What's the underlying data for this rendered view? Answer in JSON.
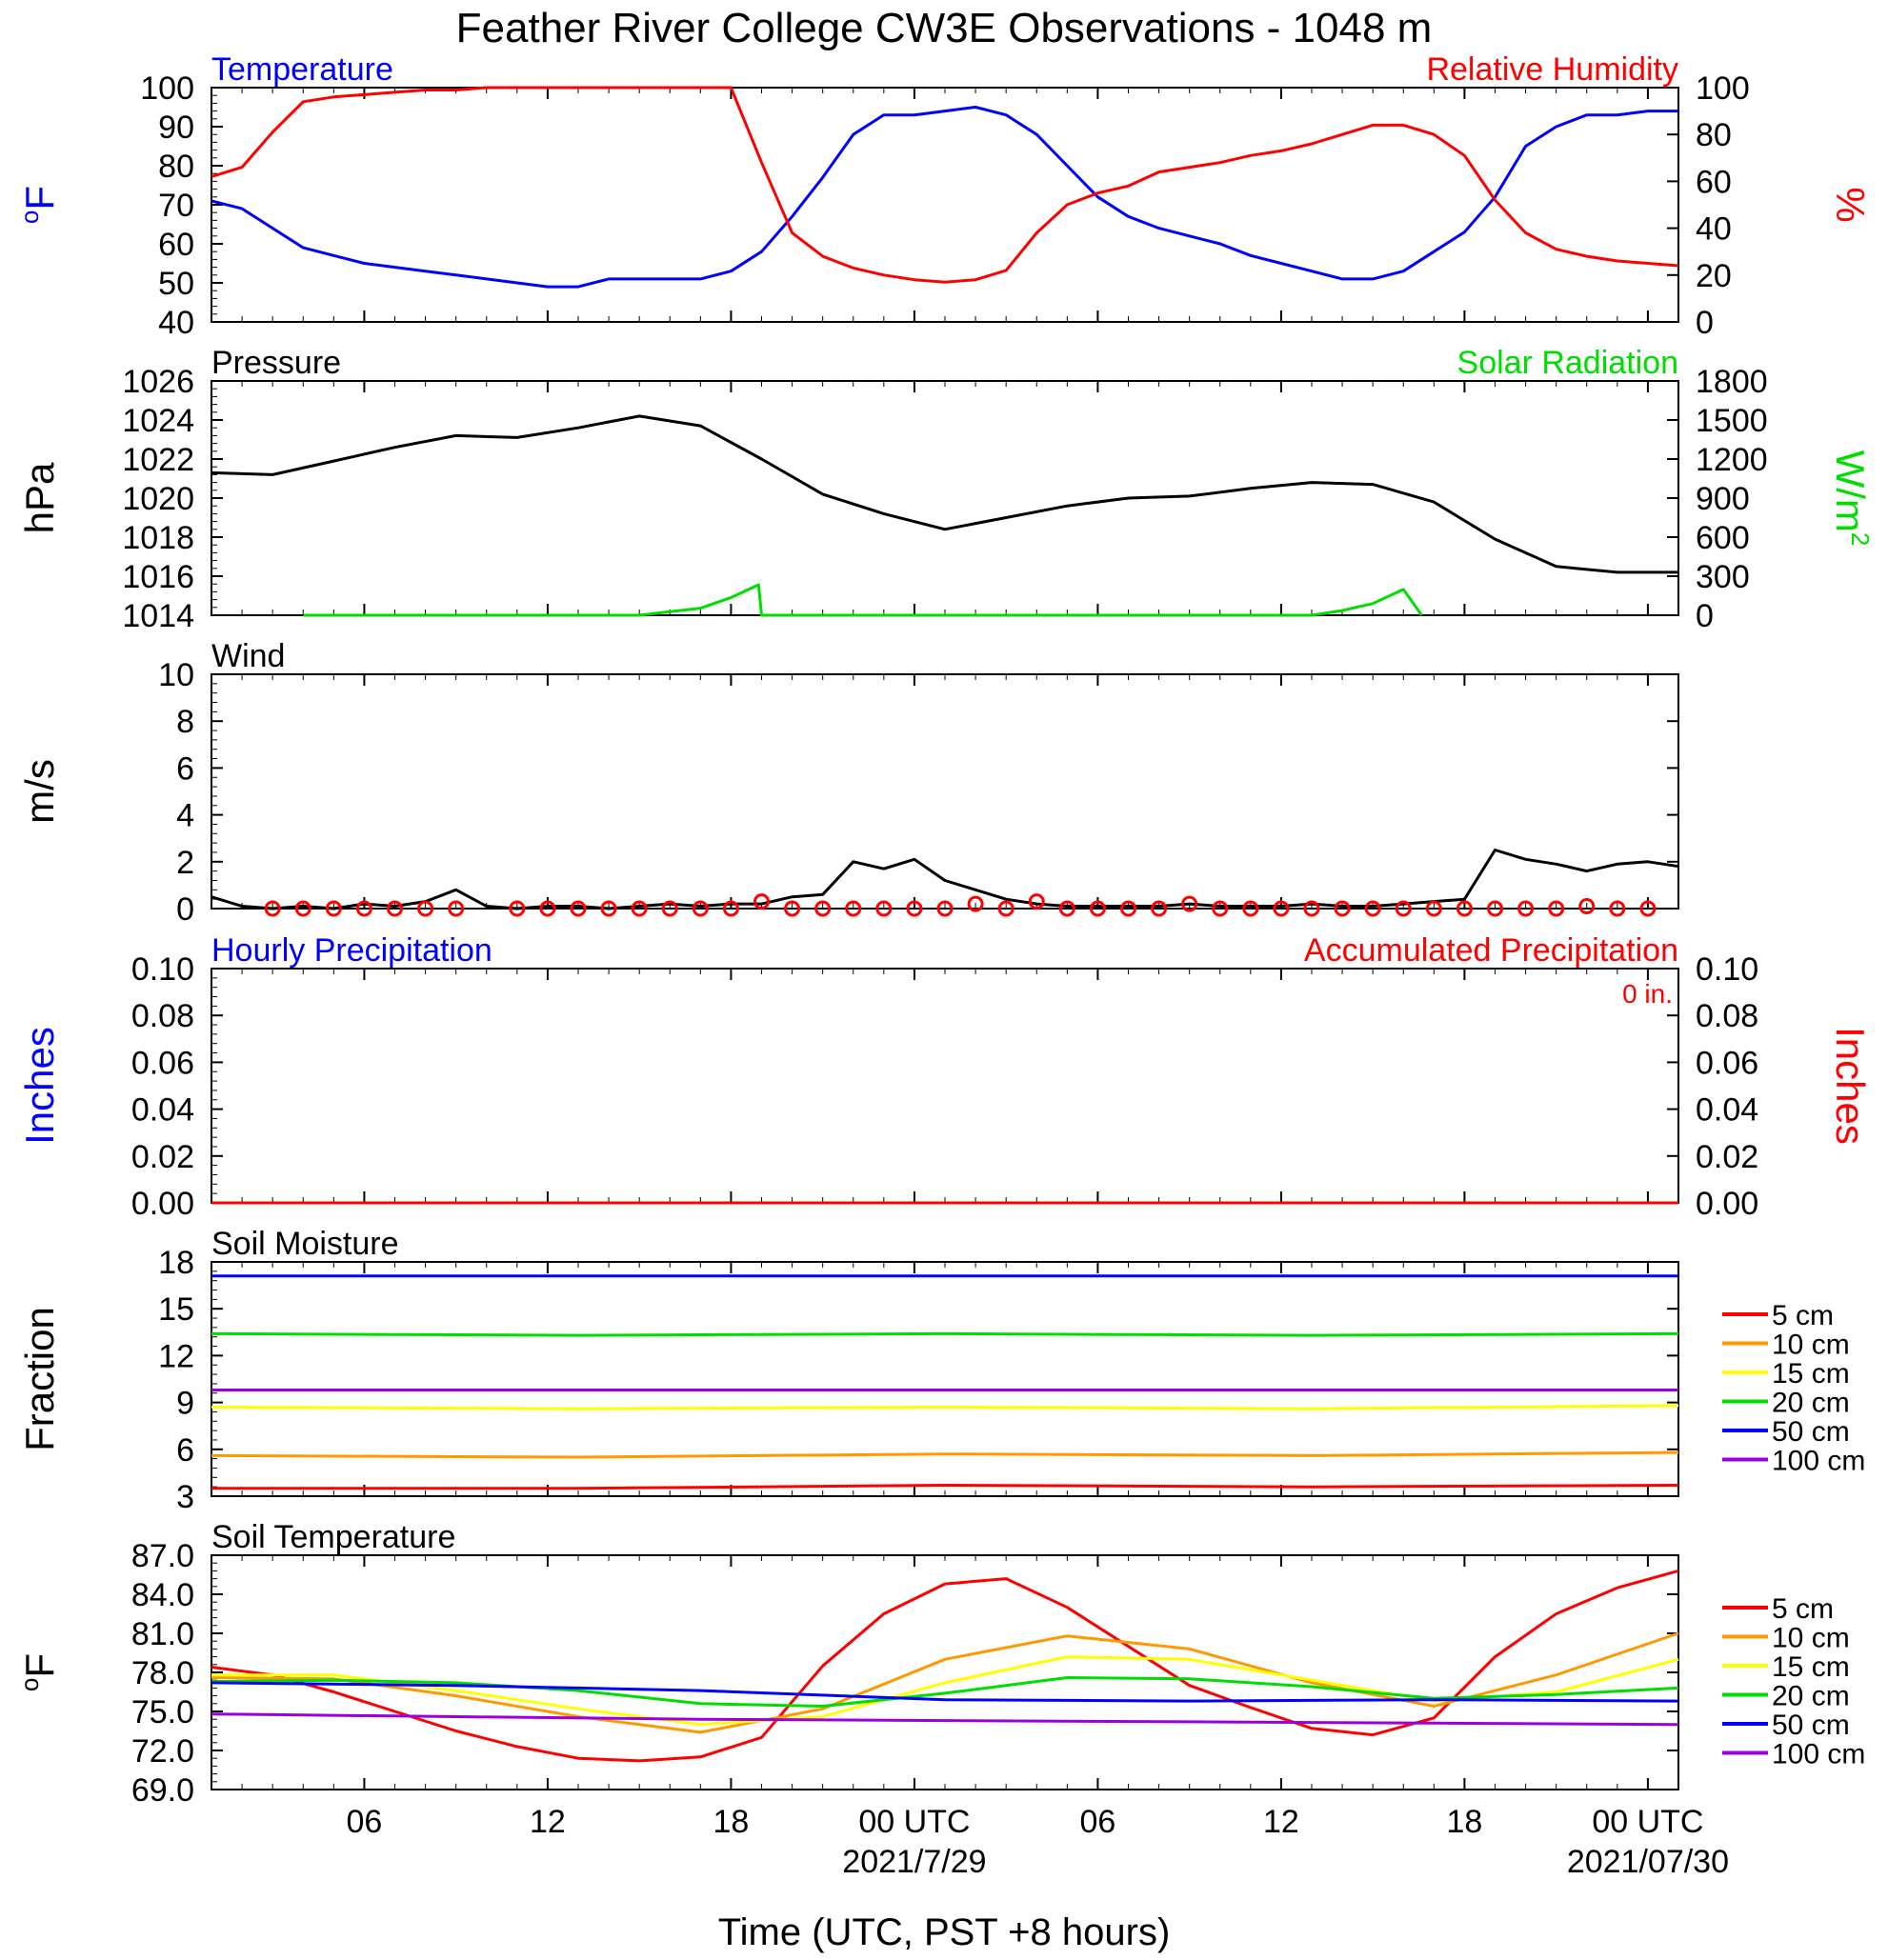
{
  "title": "Feather River College CW3E Observations - 1048 m",
  "xlabel": "Time (UTC, PST +8 hours)",
  "x_ticks": [
    "06",
    "12",
    "18",
    "00 UTC",
    "06",
    "12",
    "18",
    "00 UTC"
  ],
  "date_labels": [
    "2021/7/29",
    "2021/07/30"
  ],
  "colors": {
    "blue": "#0000ff",
    "red": "#ff0000",
    "green": "#00dd00",
    "black": "#000000",
    "orange": "#ff9900",
    "yellow": "#ffff00",
    "purple": "#9900dd"
  },
  "panels": {
    "temp_rh": {
      "left_title": "Temperature",
      "right_title": "Relative Humidity",
      "ylabel_left": "oF",
      "ylabel_right": "%",
      "yticks_left": [
        "40",
        "50",
        "60",
        "70",
        "80",
        "90",
        "100"
      ],
      "yticks_right": [
        "0",
        "20",
        "40",
        "60",
        "80",
        "100"
      ]
    },
    "pressure": {
      "left_title": "Pressure",
      "right_title": "Solar Radiation",
      "ylabel_left": "hPa",
      "ylabel_right": "W/m2",
      "yticks_left": [
        "1014",
        "1016",
        "1018",
        "1020",
        "1022",
        "1024",
        "1026"
      ],
      "yticks_right": [
        "0",
        "300",
        "600",
        "900",
        "1200",
        "1500",
        "1800"
      ]
    },
    "wind": {
      "left_title": "Wind",
      "ylabel_left": "m/s",
      "yticks_left": [
        "0",
        "2",
        "4",
        "6",
        "8",
        "10"
      ]
    },
    "precip": {
      "left_title": "Hourly Precipitation",
      "right_title": "Accumulated Precipitation",
      "accum_label": "0 in.",
      "ylabel_left": "Inches",
      "ylabel_right": "Inches",
      "yticks_left": [
        "0.00",
        "0.02",
        "0.04",
        "0.06",
        "0.08",
        "0.10"
      ],
      "yticks_right": [
        "0.00",
        "0.02",
        "0.04",
        "0.06",
        "0.08",
        "0.10"
      ]
    },
    "soil_moisture": {
      "left_title": "Soil Moisture",
      "ylabel_left": "Fraction",
      "yticks_left": [
        "3",
        "6",
        "9",
        "12",
        "15",
        "18"
      ],
      "legend": [
        "5 cm",
        "10 cm",
        "15 cm",
        "20 cm",
        "50 cm",
        "100 cm"
      ]
    },
    "soil_temp": {
      "left_title": "Soil Temperature",
      "ylabel_left": "oF",
      "yticks_left": [
        "69.0",
        "72.0",
        "75.0",
        "78.0",
        "81.0",
        "84.0",
        "87.0"
      ],
      "legend": [
        "5 cm",
        "10 cm",
        "15 cm",
        "20 cm",
        "50 cm",
        "100 cm"
      ]
    }
  },
  "chart_data": [
    {
      "type": "line",
      "title": "Temperature / Relative Humidity",
      "x_unit": "hours since 2021-07-28 01 UTC",
      "ylim_left": [
        40,
        100
      ],
      "ylim_right": [
        0,
        100
      ],
      "series": [
        {
          "name": "Temperature",
          "axis": "left",
          "color": "blue",
          "x": [
            0,
            1,
            2,
            3,
            4,
            5,
            6,
            7,
            8,
            9,
            10,
            11,
            12,
            13,
            14,
            15,
            16,
            17,
            18,
            19,
            20,
            21,
            22,
            23,
            24,
            25,
            26,
            27,
            28,
            29,
            30,
            31,
            32,
            33,
            34,
            35,
            36,
            37,
            38,
            39,
            40,
            41,
            42,
            43,
            44,
            45,
            46,
            47,
            48
          ],
          "y": [
            71,
            69,
            64,
            59,
            57,
            55,
            54,
            53,
            52,
            51,
            50,
            49,
            49,
            51,
            51,
            51,
            51,
            53,
            58,
            67,
            77,
            88,
            93,
            93,
            94,
            95,
            93,
            88,
            80,
            72,
            67,
            64,
            62,
            60,
            57,
            55,
            53,
            51,
            51,
            53,
            58,
            63,
            72,
            85,
            90,
            93,
            93,
            94,
            94
          ]
        },
        {
          "name": "Relative Humidity",
          "axis": "right",
          "color": "red",
          "x": [
            0,
            1,
            2,
            3,
            4,
            5,
            6,
            7,
            8,
            9,
            10,
            11,
            12,
            13,
            14,
            15,
            16,
            17,
            18,
            19,
            20,
            21,
            22,
            23,
            24,
            25,
            26,
            27,
            28,
            29,
            30,
            31,
            32,
            33,
            34,
            35,
            36,
            37,
            38,
            39,
            40,
            41,
            42,
            43,
            44,
            45,
            46,
            47,
            48
          ],
          "y": [
            62,
            66,
            81,
            94,
            96,
            97,
            98,
            99,
            99,
            100,
            100,
            100,
            100,
            100,
            100,
            100,
            100,
            100,
            68,
            38,
            28,
            23,
            20,
            18,
            17,
            18,
            22,
            38,
            50,
            55,
            58,
            64,
            66,
            68,
            71,
            73,
            76,
            80,
            84,
            84,
            80,
            71,
            52,
            38,
            31,
            28,
            26,
            25,
            24
          ]
        }
      ]
    },
    {
      "type": "line",
      "title": "Pressure / Solar Radiation",
      "x_unit": "hours since 2021-07-28 01 UTC",
      "ylim_left": [
        1014,
        1026
      ],
      "ylim_right": [
        0,
        2000
      ],
      "series": [
        {
          "name": "Pressure",
          "axis": "left",
          "color": "black",
          "x": [
            0,
            2,
            4,
            6,
            8,
            10,
            12,
            14,
            16,
            18,
            20,
            22,
            24,
            26,
            28,
            30,
            32,
            34,
            36,
            38,
            40,
            42,
            44,
            46,
            48
          ],
          "y": [
            1021.3,
            1021.2,
            1021.9,
            1022.6,
            1023.2,
            1023.1,
            1023.6,
            1024.2,
            1023.7,
            1022.0,
            1020.2,
            1019.2,
            1018.4,
            1019.0,
            1019.6,
            1020.0,
            1020.1,
            1020.5,
            1020.8,
            1020.7,
            1019.8,
            1017.9,
            1016.5,
            1016.2,
            1016.2
          ]
        },
        {
          "name": "Solar Radiation",
          "axis": "right",
          "color": "green",
          "x": [
            3,
            10,
            14,
            15,
            16,
            17,
            17.9,
            18,
            29.2,
            36,
            37,
            38,
            39,
            39.6
          ],
          "y": [
            0,
            0,
            0,
            30,
            60,
            150,
            260,
            0,
            0,
            0,
            40,
            100,
            220,
            0
          ]
        }
      ]
    },
    {
      "type": "line",
      "title": "Wind",
      "x_unit": "hours since 2021-07-28 01 UTC",
      "ylim": [
        0,
        10
      ],
      "series": [
        {
          "name": "Wind speed",
          "color": "black",
          "x": [
            0,
            1,
            2,
            3,
            4,
            5,
            6,
            7,
            8,
            9,
            10,
            11,
            12,
            13,
            14,
            15,
            16,
            17,
            18,
            19,
            20,
            21,
            22,
            23,
            24,
            25,
            26,
            27,
            28,
            29,
            30,
            31,
            32,
            33,
            34,
            35,
            36,
            37,
            38,
            39,
            40,
            41,
            42,
            43,
            44,
            45,
            46,
            47,
            48
          ],
          "y": [
            0.5,
            0.1,
            0.0,
            0.1,
            0.0,
            0.2,
            0.1,
            0.3,
            0.8,
            0.1,
            0.0,
            0.1,
            0.1,
            0.0,
            0.1,
            0.2,
            0.1,
            0.2,
            0.2,
            0.5,
            0.6,
            2.0,
            1.7,
            2.1,
            1.2,
            0.8,
            0.4,
            0.2,
            0.1,
            0.1,
            0.1,
            0.1,
            0.2,
            0.1,
            0.1,
            0.1,
            0.2,
            0.1,
            0.1,
            0.2,
            0.3,
            0.4,
            2.5,
            2.1,
            1.9,
            1.6,
            1.9,
            2.0,
            1.8
          ]
        }
      ],
      "barb_points": {
        "x": [
          2,
          3,
          4,
          5,
          6,
          7,
          8,
          10,
          11,
          12,
          13,
          14,
          15,
          16,
          17,
          18,
          19,
          20,
          21,
          22,
          23,
          24,
          25,
          26,
          27,
          28,
          29,
          30,
          31,
          32,
          33,
          34,
          35,
          36,
          37,
          38,
          39,
          40,
          41,
          42,
          43,
          44,
          45,
          46,
          47
        ],
        "y": [
          0,
          0,
          0,
          0,
          0,
          0,
          0,
          0,
          0,
          0,
          0,
          0,
          0,
          0,
          0,
          0.3,
          0,
          0,
          0,
          0,
          0,
          0,
          0.2,
          0,
          0.3,
          0,
          0,
          0,
          0,
          0.2,
          0,
          0,
          0,
          0,
          0,
          0,
          0,
          0,
          0,
          0,
          0,
          0,
          0.1,
          0,
          0
        ]
      }
    },
    {
      "type": "line",
      "title": "Hourly / Accumulated Precipitation",
      "x_unit": "hours since 2021-07-28 01 UTC",
      "ylim": [
        0,
        0.1
      ],
      "series": [
        {
          "name": "Hourly Precipitation",
          "color": "blue",
          "x": [
            0,
            48
          ],
          "y": [
            0,
            0
          ]
        },
        {
          "name": "Accumulated Precipitation",
          "color": "red",
          "x": [
            0,
            48
          ],
          "y": [
            0,
            0
          ]
        }
      ]
    },
    {
      "type": "line",
      "title": "Soil Moisture",
      "x_unit": "hours since 2021-07-28 01 UTC",
      "ylim": [
        3,
        18
      ],
      "series": [
        {
          "name": "5 cm",
          "color": "red",
          "x": [
            0,
            12,
            24,
            36,
            48
          ],
          "y": [
            3.5,
            3.5,
            3.7,
            3.6,
            3.7
          ]
        },
        {
          "name": "10 cm",
          "color": "orange",
          "x": [
            0,
            12,
            24,
            36,
            48
          ],
          "y": [
            5.6,
            5.5,
            5.7,
            5.6,
            5.8
          ]
        },
        {
          "name": "15 cm",
          "color": "yellow",
          "x": [
            0,
            12,
            24,
            36,
            48
          ],
          "y": [
            8.7,
            8.6,
            8.7,
            8.6,
            8.8
          ]
        },
        {
          "name": "20 cm",
          "color": "green",
          "x": [
            0,
            12,
            24,
            36,
            48
          ],
          "y": [
            13.4,
            13.3,
            13.4,
            13.3,
            13.4
          ]
        },
        {
          "name": "50 cm",
          "color": "blue",
          "x": [
            0,
            12,
            24,
            36,
            48
          ],
          "y": [
            17.1,
            17.1,
            17.1,
            17.1,
            17.1
          ]
        },
        {
          "name": "100 cm",
          "color": "purple",
          "x": [
            0,
            12,
            24,
            36,
            48
          ],
          "y": [
            9.8,
            9.8,
            9.8,
            9.8,
            9.8
          ]
        }
      ]
    },
    {
      "type": "line",
      "title": "Soil Temperature",
      "x_unit": "hours since 2021-07-28 01 UTC",
      "ylim": [
        69,
        87
      ],
      "series": [
        {
          "name": "5 cm",
          "color": "red",
          "x": [
            0,
            2,
            4,
            6,
            8,
            10,
            12,
            14,
            16,
            18,
            20,
            22,
            24,
            26,
            28,
            30,
            32,
            34,
            36,
            38,
            40,
            42,
            44,
            46,
            48
          ],
          "y": [
            78.4,
            77.8,
            76.5,
            75.0,
            73.5,
            72.3,
            71.4,
            71.2,
            71.5,
            73.0,
            78.5,
            82.5,
            84.8,
            85.2,
            83.0,
            80.0,
            77.0,
            75.3,
            73.7,
            73.2,
            74.5,
            79.2,
            82.5,
            84.5,
            85.8
          ]
        },
        {
          "name": "10 cm",
          "color": "orange",
          "x": [
            0,
            4,
            8,
            12,
            16,
            20,
            24,
            28,
            32,
            36,
            40,
            44,
            48
          ],
          "y": [
            77.6,
            77.5,
            76.2,
            74.6,
            73.4,
            75.2,
            79.0,
            80.8,
            79.8,
            77.2,
            75.4,
            77.8,
            81.0
          ]
        },
        {
          "name": "15 cm",
          "color": "yellow",
          "x": [
            0,
            4,
            8,
            12,
            16,
            20,
            24,
            28,
            32,
            36,
            40,
            44,
            48
          ],
          "y": [
            77.8,
            77.8,
            76.6,
            75.2,
            74.0,
            74.6,
            77.2,
            79.2,
            79.0,
            77.4,
            75.8,
            76.5,
            79.0
          ]
        },
        {
          "name": "20 cm",
          "color": "green",
          "x": [
            0,
            4,
            8,
            12,
            16,
            20,
            24,
            28,
            32,
            36,
            40,
            44,
            48
          ],
          "y": [
            77.3,
            77.4,
            77.2,
            76.6,
            75.6,
            75.4,
            76.4,
            77.6,
            77.5,
            76.9,
            76.0,
            76.3,
            76.8
          ]
        },
        {
          "name": "50 cm",
          "color": "blue",
          "x": [
            0,
            8,
            16,
            24,
            32,
            40,
            48
          ],
          "y": [
            77.2,
            77.0,
            76.6,
            75.9,
            75.8,
            75.9,
            75.8
          ]
        },
        {
          "name": "100 cm",
          "color": "purple",
          "x": [
            0,
            8,
            16,
            24,
            32,
            40,
            48
          ],
          "y": [
            74.8,
            74.6,
            74.4,
            74.3,
            74.2,
            74.1,
            74.0
          ]
        }
      ]
    }
  ]
}
